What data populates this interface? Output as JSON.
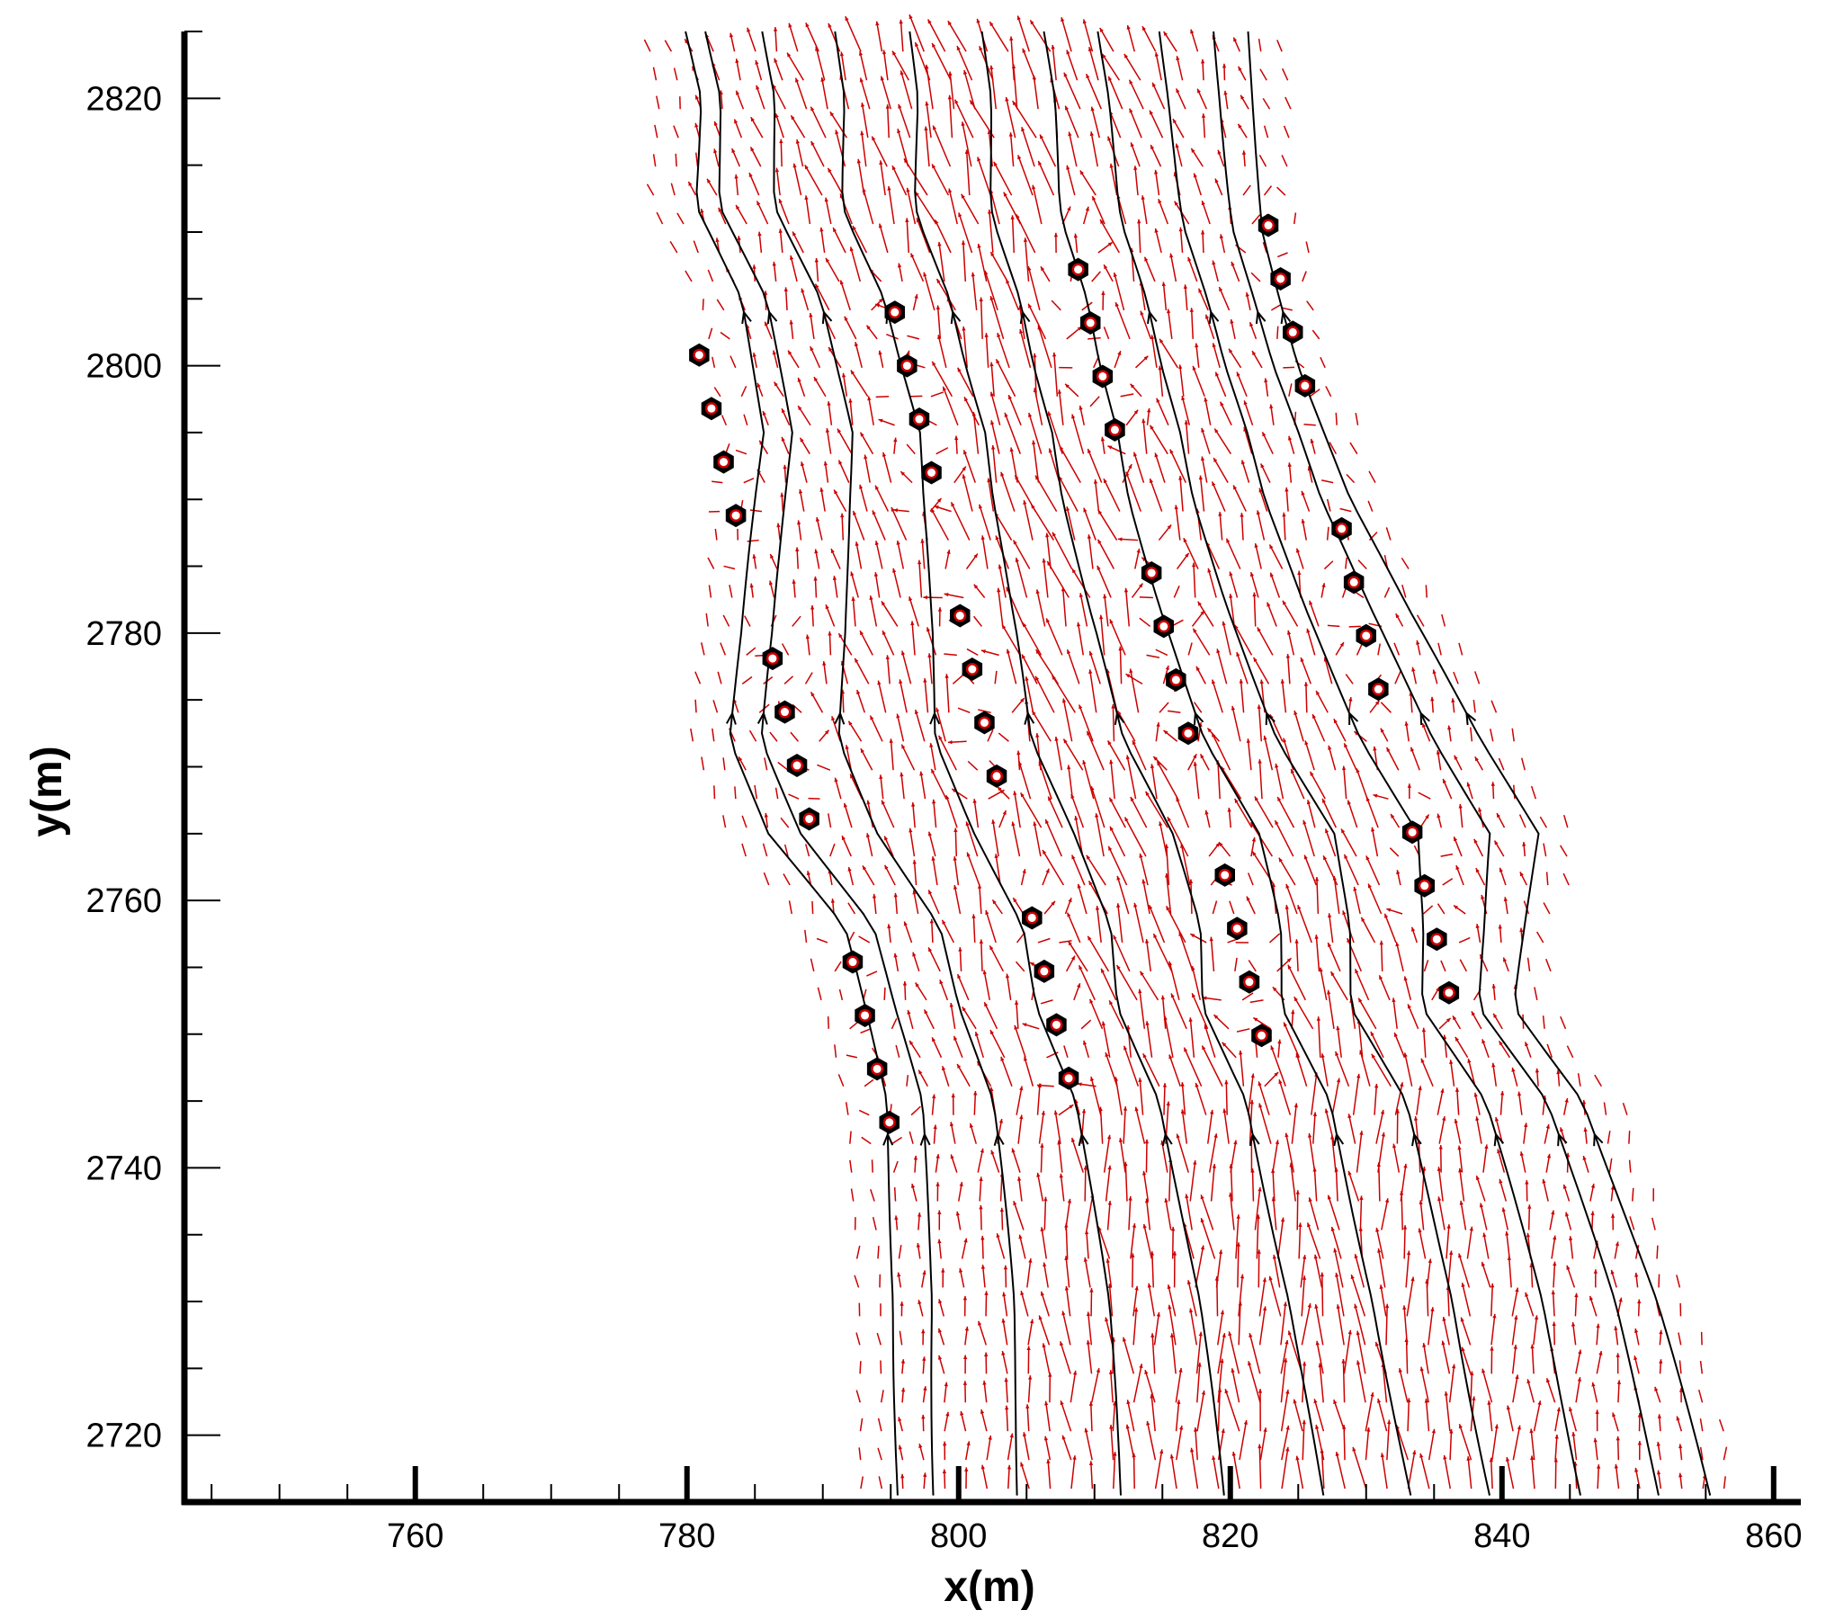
{
  "chart_data": {
    "type": "vector-field",
    "title": "",
    "xlabel": "x(m)",
    "ylabel": "y(m)",
    "xlim": [
      743,
      862
    ],
    "ylim": [
      2715,
      2825
    ],
    "x_major_ticks": [
      760,
      780,
      800,
      820,
      840,
      860
    ],
    "x_minor_ticks": [
      745,
      750,
      755,
      765,
      770,
      775,
      785,
      790,
      795,
      805,
      810,
      815,
      825,
      830,
      835,
      845,
      850,
      855
    ],
    "y_major_ticks": [
      2720,
      2740,
      2760,
      2780,
      2800,
      2820
    ],
    "y_minor_ticks": [
      2725,
      2730,
      2735,
      2745,
      2750,
      2755,
      2765,
      2770,
      2775,
      2785,
      2790,
      2795,
      2805,
      2810,
      2815,
      2825
    ],
    "grid": false,
    "legend": "none",
    "colors": {
      "vectors": "#cc0000",
      "streamlines": "#000000",
      "markers": "#000000"
    },
    "markers": [
      [
        780.9,
        2800.8
      ],
      [
        781.8,
        2796.8
      ],
      [
        782.7,
        2792.8
      ],
      [
        783.6,
        2788.8
      ],
      [
        786.3,
        2778.1
      ],
      [
        787.2,
        2774.1
      ],
      [
        788.1,
        2770.1
      ],
      [
        789.0,
        2766.1
      ],
      [
        792.2,
        2755.4
      ],
      [
        793.1,
        2751.4
      ],
      [
        794.0,
        2747.4
      ],
      [
        794.9,
        2743.4
      ],
      [
        795.3,
        2804.0
      ],
      [
        796.2,
        2800.0
      ],
      [
        797.1,
        2796.0
      ],
      [
        798.0,
        2792.0
      ],
      [
        800.1,
        2781.3
      ],
      [
        801.0,
        2777.3
      ],
      [
        801.9,
        2773.3
      ],
      [
        802.8,
        2769.3
      ],
      [
        805.4,
        2758.7
      ],
      [
        806.3,
        2754.7
      ],
      [
        807.2,
        2750.7
      ],
      [
        808.1,
        2746.7
      ],
      [
        808.8,
        2807.2
      ],
      [
        809.7,
        2803.2
      ],
      [
        810.6,
        2799.2
      ],
      [
        811.5,
        2795.2
      ],
      [
        814.2,
        2784.5
      ],
      [
        815.1,
        2780.5
      ],
      [
        816.0,
        2776.5
      ],
      [
        816.9,
        2772.5
      ],
      [
        819.6,
        2761.9
      ],
      [
        820.5,
        2757.9
      ],
      [
        821.4,
        2753.9
      ],
      [
        822.3,
        2749.9
      ],
      [
        822.8,
        2810.5
      ],
      [
        823.7,
        2806.5
      ],
      [
        824.6,
        2802.5
      ],
      [
        825.5,
        2798.5
      ],
      [
        828.2,
        2787.8
      ],
      [
        829.1,
        2783.8
      ],
      [
        830.0,
        2779.8
      ],
      [
        830.9,
        2775.8
      ],
      [
        833.4,
        2765.1
      ],
      [
        834.3,
        2761.1
      ],
      [
        835.2,
        2757.1
      ],
      [
        836.1,
        2753.1
      ]
    ],
    "channel": {
      "left_bank": [
        [
          794.8,
          2715
        ],
        [
          794.7,
          2730
        ],
        [
          793.8,
          2745
        ],
        [
          790.5,
          2758
        ],
        [
          785.0,
          2765
        ],
        [
          782.4,
          2772
        ],
        [
          783.5,
          2780
        ],
        [
          785.0,
          2795
        ],
        [
          783.0,
          2805
        ],
        [
          779.5,
          2812
        ],
        [
          780.0,
          2820
        ],
        [
          779.0,
          2825
        ]
      ],
      "right_bank": [
        [
          856.0,
          2715
        ],
        [
          852.0,
          2730
        ],
        [
          847.0,
          2745
        ],
        [
          842.0,
          2752
        ],
        [
          843.5,
          2765
        ],
        [
          839.0,
          2772
        ],
        [
          833.5,
          2782
        ],
        [
          829.5,
          2790
        ],
        [
          826.0,
          2800
        ],
        [
          823.5,
          2810
        ],
        [
          822.0,
          2825
        ]
      ]
    }
  }
}
